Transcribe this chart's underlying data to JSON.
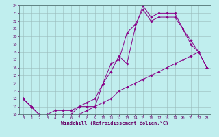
{
  "xlabel": "Windchill (Refroidissement éolien,°C)",
  "bg_color": "#c0eeee",
  "line_color": "#880088",
  "grid_color": "#99bbbb",
  "line1_x": [
    0,
    1,
    2,
    3,
    4,
    5,
    6,
    7,
    8,
    9,
    10,
    11,
    12,
    13,
    14,
    15,
    16,
    17,
    18,
    19,
    20,
    21,
    22,
    23
  ],
  "line1_y": [
    12,
    11,
    10,
    10,
    10.5,
    10.5,
    10.5,
    11,
    11,
    11,
    14,
    15.5,
    17.5,
    16.5,
    21,
    24,
    22.5,
    23,
    23,
    23,
    21,
    19.5,
    18,
    16
  ],
  "line2_x": [
    0,
    1,
    2,
    3,
    4,
    5,
    6,
    7,
    8,
    9,
    10,
    11,
    12,
    13,
    14,
    15,
    16,
    17,
    18,
    19,
    20,
    21,
    22,
    23
  ],
  "line2_y": [
    12,
    11,
    10,
    10,
    10,
    10,
    10,
    11,
    11.5,
    12,
    14,
    16.5,
    17,
    20.5,
    21.5,
    23.5,
    22,
    22.5,
    22.5,
    22.5,
    21,
    19,
    18,
    16
  ],
  "line3_x": [
    0,
    1,
    2,
    3,
    4,
    5,
    6,
    7,
    8,
    9,
    10,
    11,
    12,
    13,
    14,
    15,
    16,
    17,
    18,
    19,
    20,
    21,
    22,
    23
  ],
  "line3_y": [
    12,
    11,
    10,
    10,
    10,
    10,
    10,
    10,
    10.5,
    11,
    11.5,
    12,
    13,
    13.5,
    14,
    14.5,
    15,
    15.5,
    16,
    16.5,
    17,
    17.5,
    18,
    16
  ],
  "xlim": [
    -0.5,
    23.5
  ],
  "ylim": [
    10,
    24
  ],
  "yticks": [
    10,
    11,
    12,
    13,
    14,
    15,
    16,
    17,
    18,
    19,
    20,
    21,
    22,
    23,
    24
  ],
  "xticks": [
    0,
    1,
    2,
    3,
    4,
    5,
    6,
    7,
    8,
    9,
    10,
    11,
    12,
    13,
    14,
    15,
    16,
    17,
    18,
    19,
    20,
    21,
    22,
    23
  ],
  "marker": "D",
  "markersize": 1.8,
  "linewidth": 0.7
}
